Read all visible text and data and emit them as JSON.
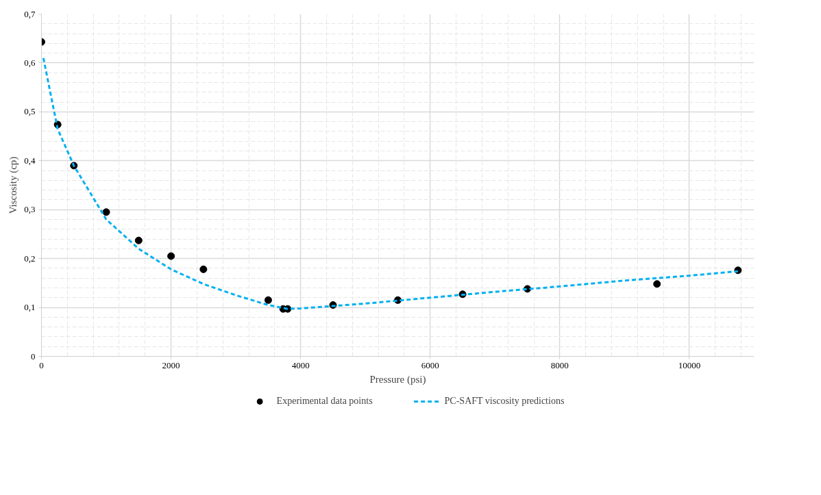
{
  "chart_data": {
    "type": "scatter",
    "xlabel": "Pressure (psi)",
    "ylabel": "Viscosity (cp)",
    "xlim": [
      0,
      11000
    ],
    "ylim": [
      0,
      0.7
    ],
    "xticks": [
      0,
      2000,
      4000,
      6000,
      8000,
      10000
    ],
    "yticks": [
      0,
      {
        "value": 0.1,
        "label": "0,1"
      },
      {
        "value": 0.2,
        "label": "0,2"
      },
      {
        "value": 0.3,
        "label": "0,3"
      },
      {
        "value": 0.4,
        "label": "0,4"
      },
      {
        "value": 0.5,
        "label": "0,5"
      },
      {
        "value": 0.6,
        "label": "0,6"
      },
      {
        "value": 0.7,
        "label": "0,7"
      }
    ],
    "grid": true,
    "legend": "bottom",
    "series": [
      {
        "name": "Experimental data points",
        "marker": "circle",
        "color": "#000000",
        "x": [
          0,
          250,
          500,
          1000,
          1500,
          2000,
          2500,
          3500,
          3730,
          3800,
          4500,
          5500,
          6500,
          7500,
          9500,
          10750
        ],
        "values": [
          0.643,
          0.474,
          0.39,
          0.295,
          0.237,
          0.205,
          0.178,
          0.115,
          0.097,
          0.097,
          0.105,
          0.115,
          0.127,
          0.138,
          0.148,
          0.176
        ]
      },
      {
        "name": "PC-SAFT viscosity predictions",
        "type": "line",
        "line_style": "dashed",
        "color": "#00b0f0",
        "x": [
          30,
          250,
          500,
          1000,
          1500,
          2000,
          2500,
          3000,
          3500,
          3800,
          4000,
          5000,
          6000,
          7000,
          8000,
          9000,
          10000,
          10750
        ],
        "values": [
          0.61,
          0.465,
          0.39,
          0.28,
          0.22,
          0.178,
          0.148,
          0.125,
          0.105,
          0.097,
          0.098,
          0.108,
          0.12,
          0.132,
          0.143,
          0.155,
          0.165,
          0.174
        ]
      }
    ]
  }
}
